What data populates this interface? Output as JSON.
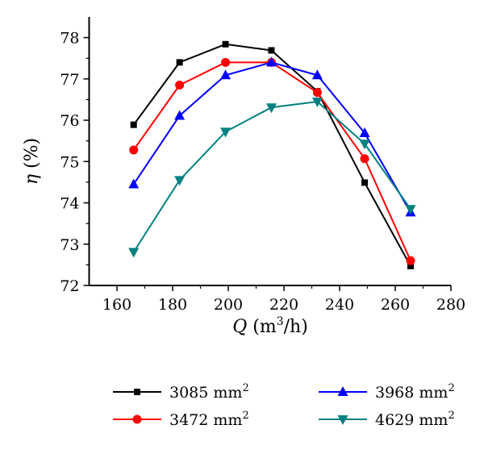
{
  "chart_data": {
    "type": "line",
    "title": "",
    "xlabel": "Q (m3/h)",
    "xlabel_parts": {
      "var": "Q",
      "unit_pre": " (m",
      "sup": "3",
      "unit_post": "/h)"
    },
    "ylabel": "η (%)",
    "ylabel_parts": {
      "var": "η",
      "unit": " (%)"
    },
    "xlim": [
      150,
      280
    ],
    "ylim": [
      72,
      78.5
    ],
    "xticks": [
      160,
      180,
      200,
      220,
      240,
      260,
      280
    ],
    "yticks": [
      72,
      73,
      74,
      75,
      76,
      77,
      78
    ],
    "grid": false,
    "legend_placement": "bottom",
    "x": [
      166,
      182.5,
      199,
      215.5,
      232,
      249,
      265.5
    ],
    "series": [
      {
        "name": "3085 mm2",
        "label": "3085 mm",
        "sup": "2",
        "color": "#000000",
        "marker": "square",
        "values": [
          75.89,
          77.4,
          77.84,
          77.69,
          76.7,
          74.49,
          72.47
        ]
      },
      {
        "name": "3472 mm2",
        "label": "3472 mm",
        "sup": "2",
        "color": "#ff0000",
        "marker": "circle",
        "values": [
          75.28,
          76.85,
          77.4,
          77.4,
          76.67,
          75.07,
          72.6
        ]
      },
      {
        "name": "3968 mm2",
        "label": "3968 mm",
        "sup": "2",
        "color": "#0000ff",
        "marker": "triangle-up",
        "values": [
          74.45,
          76.11,
          77.09,
          77.4,
          77.09,
          75.69,
          73.77
        ]
      },
      {
        "name": "4629 mm2",
        "label": "4629 mm",
        "sup": "2",
        "color": "#008080",
        "marker": "triangle-down",
        "values": [
          72.81,
          74.55,
          75.72,
          76.31,
          76.45,
          75.43,
          73.85
        ]
      }
    ]
  }
}
